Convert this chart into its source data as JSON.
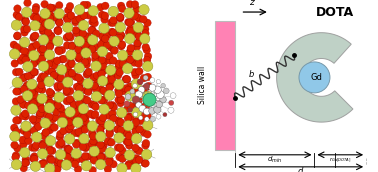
{
  "fig_width": 3.78,
  "fig_height": 1.72,
  "dpi": 100,
  "bg_color": "#ffffff",
  "wall_color": "#FF82B4",
  "dota_color": "#b8ccc0",
  "gd_color": "#90C8E8",
  "spring_color": "#333333",
  "spring_n_coils": 7,
  "title_dota": "DOTA",
  "label_silica": "Silica wall",
  "label_gd": "Gd",
  "label_b": "b",
  "label_z": "z"
}
